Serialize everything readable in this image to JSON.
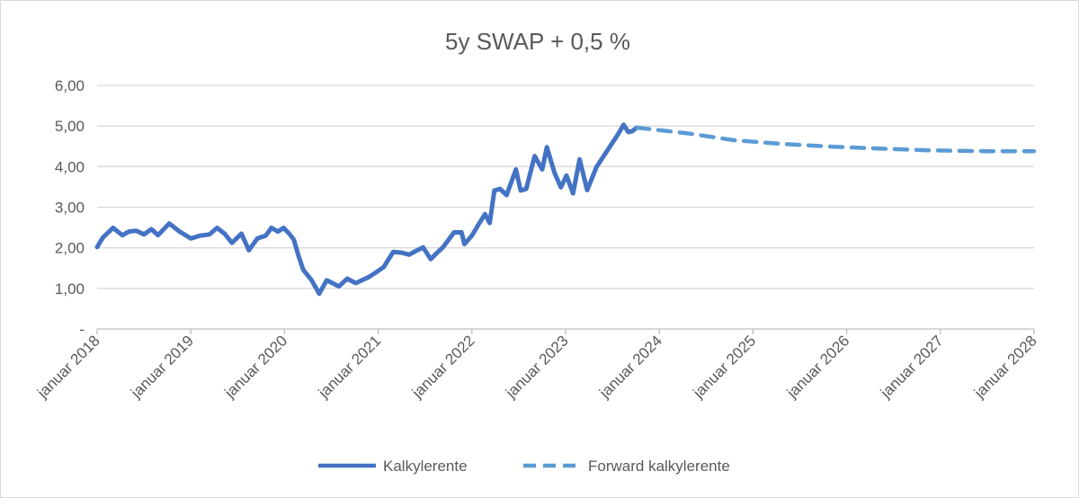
{
  "chart_data": {
    "type": "line",
    "title": "5y SWAP + 0,5 %",
    "xlabel": "",
    "ylabel": "",
    "xlim": [
      2018,
      2028
    ],
    "ylim": [
      0,
      6
    ],
    "grid": true,
    "legend_position": "bottom",
    "y_ticks": [
      {
        "value": 0,
        "label": "-"
      },
      {
        "value": 1,
        "label": "1,00"
      },
      {
        "value": 2,
        "label": "2,00"
      },
      {
        "value": 3,
        "label": "3,00"
      },
      {
        "value": 4,
        "label": "4,00"
      },
      {
        "value": 5,
        "label": "5,00"
      },
      {
        "value": 6,
        "label": "6,00"
      }
    ],
    "x_ticks": [
      {
        "value": 2018,
        "label": "januar 2018"
      },
      {
        "value": 2019,
        "label": "januar 2019"
      },
      {
        "value": 2020,
        "label": "januar 2020"
      },
      {
        "value": 2021,
        "label": "januar 2021"
      },
      {
        "value": 2022,
        "label": "januar 2022"
      },
      {
        "value": 2023,
        "label": "januar 2023"
      },
      {
        "value": 2024,
        "label": "januar 2024"
      },
      {
        "value": 2025,
        "label": "januar 2025"
      },
      {
        "value": 2026,
        "label": "januar 2026"
      },
      {
        "value": 2027,
        "label": "januar 2027"
      },
      {
        "value": 2028,
        "label": "januar 2028"
      }
    ],
    "series": [
      {
        "name": "Kalkylerente",
        "color": "#4472C4",
        "style": "solid",
        "points": [
          [
            2018.0,
            2.02
          ],
          [
            2018.06,
            2.25
          ],
          [
            2018.17,
            2.49
          ],
          [
            2018.27,
            2.31
          ],
          [
            2018.34,
            2.4
          ],
          [
            2018.42,
            2.42
          ],
          [
            2018.5,
            2.33
          ],
          [
            2018.58,
            2.46
          ],
          [
            2018.65,
            2.31
          ],
          [
            2018.77,
            2.6
          ],
          [
            2018.88,
            2.4
          ],
          [
            2019.0,
            2.23
          ],
          [
            2019.1,
            2.3
          ],
          [
            2019.2,
            2.33
          ],
          [
            2019.28,
            2.49
          ],
          [
            2019.36,
            2.35
          ],
          [
            2019.44,
            2.12
          ],
          [
            2019.54,
            2.35
          ],
          [
            2019.62,
            1.94
          ],
          [
            2019.71,
            2.23
          ],
          [
            2019.8,
            2.3
          ],
          [
            2019.86,
            2.49
          ],
          [
            2019.93,
            2.4
          ],
          [
            2019.99,
            2.49
          ],
          [
            2020.05,
            2.35
          ],
          [
            2020.1,
            2.2
          ],
          [
            2020.15,
            1.8
          ],
          [
            2020.2,
            1.46
          ],
          [
            2020.29,
            1.2
          ],
          [
            2020.37,
            0.87
          ],
          [
            2020.45,
            1.2
          ],
          [
            2020.52,
            1.12
          ],
          [
            2020.58,
            1.05
          ],
          [
            2020.67,
            1.24
          ],
          [
            2020.76,
            1.13
          ],
          [
            2020.9,
            1.28
          ],
          [
            2020.98,
            1.4
          ],
          [
            2021.06,
            1.53
          ],
          [
            2021.16,
            1.9
          ],
          [
            2021.25,
            1.88
          ],
          [
            2021.33,
            1.83
          ],
          [
            2021.4,
            1.92
          ],
          [
            2021.48,
            2.01
          ],
          [
            2021.56,
            1.72
          ],
          [
            2021.63,
            1.88
          ],
          [
            2021.69,
            2.01
          ],
          [
            2021.81,
            2.38
          ],
          [
            2021.89,
            2.38
          ],
          [
            2021.92,
            2.09
          ],
          [
            2022.0,
            2.3
          ],
          [
            2022.07,
            2.57
          ],
          [
            2022.14,
            2.83
          ],
          [
            2022.19,
            2.61
          ],
          [
            2022.24,
            3.41
          ],
          [
            2022.3,
            3.45
          ],
          [
            2022.37,
            3.3
          ],
          [
            2022.47,
            3.93
          ],
          [
            2022.52,
            3.41
          ],
          [
            2022.58,
            3.45
          ],
          [
            2022.67,
            4.26
          ],
          [
            2022.75,
            3.93
          ],
          [
            2022.8,
            4.48
          ],
          [
            2022.88,
            3.86
          ],
          [
            2022.95,
            3.49
          ],
          [
            2023.01,
            3.78
          ],
          [
            2023.08,
            3.34
          ],
          [
            2023.15,
            4.18
          ],
          [
            2023.23,
            3.42
          ],
          [
            2023.33,
            3.99
          ],
          [
            2023.45,
            4.41
          ],
          [
            2023.56,
            4.8
          ],
          [
            2023.62,
            5.03
          ],
          [
            2023.67,
            4.85
          ],
          [
            2023.71,
            4.87
          ],
          [
            2023.76,
            4.96
          ]
        ]
      },
      {
        "name": "Forward kalkylerente",
        "color": "#5B9BD5",
        "style": "dashed",
        "points": [
          [
            2023.76,
            4.96
          ],
          [
            2024.3,
            4.82
          ],
          [
            2024.8,
            4.65
          ],
          [
            2025.3,
            4.56
          ],
          [
            2025.85,
            4.49
          ],
          [
            2026.4,
            4.44
          ],
          [
            2026.9,
            4.4
          ],
          [
            2027.5,
            4.38
          ],
          [
            2028.0,
            4.38
          ]
        ]
      }
    ]
  }
}
